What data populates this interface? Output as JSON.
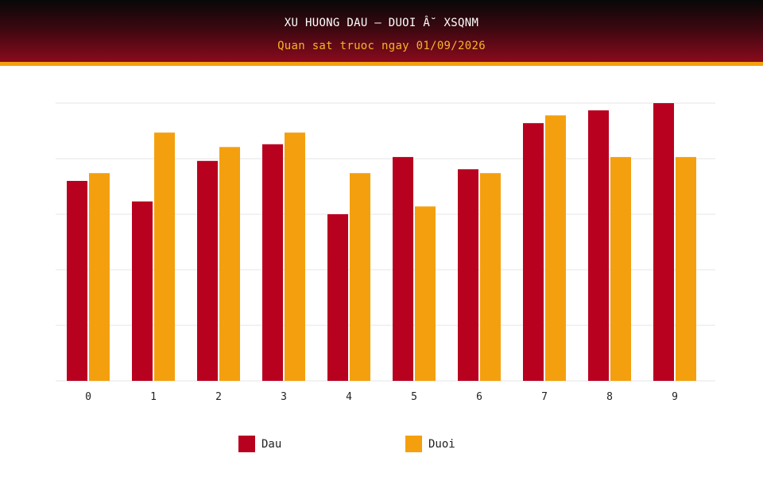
{
  "header": {
    "title": "XU HUONG DAU – DUOI Â˘ XSQNM",
    "subtitle": "Quan sat truoc ngay 01/09/2026"
  },
  "colors": {
    "dau": "#b8001f",
    "duoi": "#f4a00e",
    "grid": "#e6e6e6",
    "header_accent": "#f2a10f"
  },
  "chart_data": {
    "type": "bar",
    "categories": [
      "0",
      "1",
      "2",
      "3",
      "4",
      "5",
      "6",
      "7",
      "8",
      "9"
    ],
    "series": [
      {
        "name": "Dau",
        "color": "#b8001f",
        "values": [
          36,
          32.3,
          39.6,
          42.6,
          30,
          40.3,
          38.1,
          46.4,
          48.7,
          50
        ]
      },
      {
        "name": "Duoi",
        "color": "#f4a00e",
        "values": [
          37.4,
          44.7,
          42.1,
          44.7,
          37.4,
          31.4,
          37.4,
          47.8,
          40.3,
          40.3
        ]
      }
    ],
    "ylim": [
      0,
      50
    ],
    "y_gridlines": [
      0,
      10,
      20,
      30,
      40,
      50
    ],
    "grid": true,
    "y_tick_labels_shown": false,
    "legend_position": "bottom"
  }
}
